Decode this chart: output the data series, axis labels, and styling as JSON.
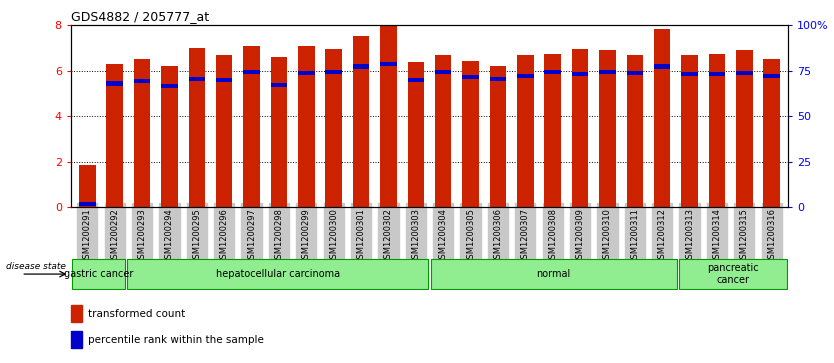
{
  "title": "GDS4882 / 205777_at",
  "samples": [
    "GSM1200291",
    "GSM1200292",
    "GSM1200293",
    "GSM1200294",
    "GSM1200295",
    "GSM1200296",
    "GSM1200297",
    "GSM1200298",
    "GSM1200299",
    "GSM1200300",
    "GSM1200301",
    "GSM1200302",
    "GSM1200303",
    "GSM1200304",
    "GSM1200305",
    "GSM1200306",
    "GSM1200307",
    "GSM1200308",
    "GSM1200309",
    "GSM1200310",
    "GSM1200311",
    "GSM1200312",
    "GSM1200313",
    "GSM1200314",
    "GSM1200315",
    "GSM1200316"
  ],
  "red_values": [
    1.85,
    6.3,
    6.5,
    6.2,
    7.0,
    6.7,
    7.1,
    6.6,
    7.1,
    6.95,
    7.55,
    8.0,
    6.4,
    6.7,
    6.45,
    6.2,
    6.7,
    6.75,
    6.95,
    6.9,
    6.7,
    7.85,
    6.7,
    6.75,
    6.9,
    6.5
  ],
  "blue_values": [
    0.05,
    5.35,
    5.45,
    5.25,
    5.55,
    5.5,
    5.85,
    5.3,
    5.8,
    5.85,
    6.1,
    6.2,
    5.5,
    5.85,
    5.65,
    5.55,
    5.7,
    5.85,
    5.75,
    5.85,
    5.8,
    6.1,
    5.75,
    5.75,
    5.8,
    5.7
  ],
  "group_boundaries": [
    0,
    2,
    13,
    22,
    26
  ],
  "group_labels": [
    "gastric cancer",
    "hepatocellular carcinoma",
    "normal",
    "pancreatic\ncancer"
  ],
  "ylim_left": [
    0,
    8
  ],
  "ylim_right": [
    0,
    100
  ],
  "yticks_left": [
    0,
    2,
    4,
    6,
    8
  ],
  "yticks_right": [
    0,
    25,
    50,
    75,
    100
  ],
  "bar_color": "#CC2200",
  "blue_color": "#0000CC",
  "bg_color": "#FFFFFF",
  "tick_bg": "#C8C8C8",
  "group_color": "#90EE90",
  "border_color": "#009900"
}
